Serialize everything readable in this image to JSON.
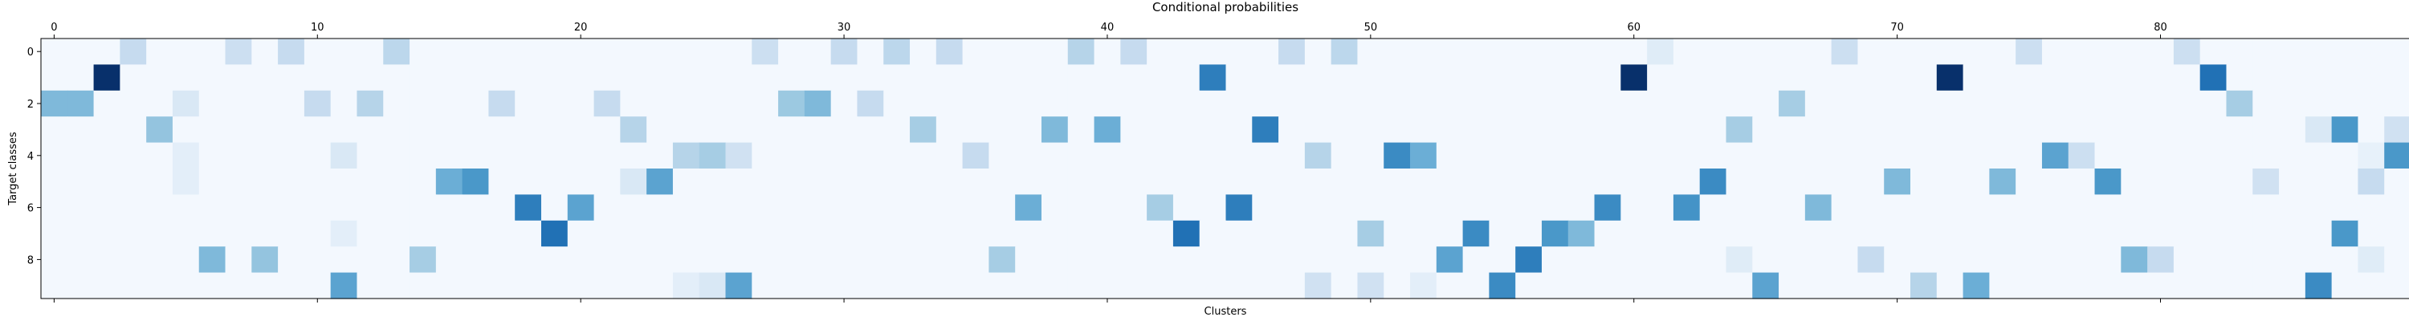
{
  "chart_data": {
    "type": "heatmap",
    "title": "Conditional probabilities",
    "xlabel": "Clusters",
    "ylabel": "Target classes",
    "n_clusters": 90,
    "n_classes": 10,
    "x_ticks": [
      0,
      10,
      20,
      30,
      40,
      50,
      60,
      70,
      80
    ],
    "y_ticks": [
      0,
      2,
      4,
      6,
      8
    ],
    "x_tick_position": "top",
    "colormap": "Blues",
    "value_range": [
      0,
      1
    ],
    "grid": false,
    "default_value": 0.02,
    "cells": [
      [
        0,
        3,
        0.25
      ],
      [
        0,
        7,
        0.22
      ],
      [
        0,
        9,
        0.25
      ],
      [
        0,
        13,
        0.28
      ],
      [
        0,
        27,
        0.22
      ],
      [
        0,
        30,
        0.25
      ],
      [
        0,
        32,
        0.28
      ],
      [
        0,
        34,
        0.25
      ],
      [
        0,
        39,
        0.3
      ],
      [
        0,
        41,
        0.25
      ],
      [
        0,
        47,
        0.25
      ],
      [
        0,
        49,
        0.28
      ],
      [
        0,
        61,
        0.12
      ],
      [
        0,
        68,
        0.22
      ],
      [
        0,
        75,
        0.22
      ],
      [
        0,
        81,
        0.22
      ],
      [
        1,
        2,
        1.0
      ],
      [
        1,
        44,
        0.7
      ],
      [
        1,
        60,
        1.0
      ],
      [
        1,
        72,
        1.0
      ],
      [
        1,
        82,
        0.75
      ],
      [
        2,
        0,
        0.45
      ],
      [
        2,
        1,
        0.45
      ],
      [
        2,
        5,
        0.15
      ],
      [
        2,
        10,
        0.25
      ],
      [
        2,
        12,
        0.3
      ],
      [
        2,
        17,
        0.25
      ],
      [
        2,
        21,
        0.25
      ],
      [
        2,
        28,
        0.38
      ],
      [
        2,
        29,
        0.45
      ],
      [
        2,
        31,
        0.25
      ],
      [
        2,
        66,
        0.35
      ],
      [
        2,
        83,
        0.35
      ],
      [
        3,
        4,
        0.4
      ],
      [
        3,
        22,
        0.3
      ],
      [
        3,
        33,
        0.35
      ],
      [
        3,
        38,
        0.45
      ],
      [
        3,
        40,
        0.5
      ],
      [
        3,
        46,
        0.7
      ],
      [
        3,
        64,
        0.35
      ],
      [
        3,
        86,
        0.15
      ],
      [
        3,
        87,
        0.6
      ],
      [
        3,
        89,
        0.2
      ],
      [
        4,
        5,
        0.1
      ],
      [
        4,
        11,
        0.15
      ],
      [
        4,
        24,
        0.3
      ],
      [
        4,
        25,
        0.35
      ],
      [
        4,
        26,
        0.2
      ],
      [
        4,
        35,
        0.25
      ],
      [
        4,
        48,
        0.3
      ],
      [
        4,
        51,
        0.65
      ],
      [
        4,
        52,
        0.5
      ],
      [
        4,
        76,
        0.55
      ],
      [
        4,
        77,
        0.22
      ],
      [
        4,
        88,
        0.08
      ],
      [
        4,
        89,
        0.6
      ],
      [
        5,
        5,
        0.1
      ],
      [
        5,
        15,
        0.5
      ],
      [
        5,
        16,
        0.6
      ],
      [
        5,
        22,
        0.15
      ],
      [
        5,
        23,
        0.55
      ],
      [
        5,
        63,
        0.65
      ],
      [
        5,
        70,
        0.45
      ],
      [
        5,
        74,
        0.45
      ],
      [
        5,
        78,
        0.6
      ],
      [
        5,
        84,
        0.2
      ],
      [
        5,
        88,
        0.25
      ],
      [
        6,
        18,
        0.7
      ],
      [
        6,
        20,
        0.55
      ],
      [
        6,
        37,
        0.5
      ],
      [
        6,
        42,
        0.35
      ],
      [
        6,
        45,
        0.7
      ],
      [
        6,
        59,
        0.65
      ],
      [
        6,
        62,
        0.62
      ],
      [
        6,
        67,
        0.45
      ],
      [
        7,
        11,
        0.1
      ],
      [
        7,
        19,
        0.75
      ],
      [
        7,
        43,
        0.75
      ],
      [
        7,
        50,
        0.35
      ],
      [
        7,
        54,
        0.65
      ],
      [
        7,
        57,
        0.6
      ],
      [
        7,
        58,
        0.45
      ],
      [
        7,
        87,
        0.6
      ],
      [
        8,
        6,
        0.45
      ],
      [
        8,
        8,
        0.4
      ],
      [
        8,
        14,
        0.35
      ],
      [
        8,
        36,
        0.35
      ],
      [
        8,
        53,
        0.55
      ],
      [
        8,
        56,
        0.7
      ],
      [
        8,
        64,
        0.12
      ],
      [
        8,
        69,
        0.25
      ],
      [
        8,
        79,
        0.45
      ],
      [
        8,
        80,
        0.25
      ],
      [
        8,
        88,
        0.12
      ],
      [
        9,
        11,
        0.55
      ],
      [
        9,
        24,
        0.1
      ],
      [
        9,
        25,
        0.15
      ],
      [
        9,
        26,
        0.55
      ],
      [
        9,
        48,
        0.2
      ],
      [
        9,
        50,
        0.2
      ],
      [
        9,
        52,
        0.1
      ],
      [
        9,
        55,
        0.65
      ],
      [
        9,
        65,
        0.55
      ],
      [
        9,
        71,
        0.3
      ],
      [
        9,
        73,
        0.5
      ],
      [
        9,
        86,
        0.65
      ]
    ]
  }
}
